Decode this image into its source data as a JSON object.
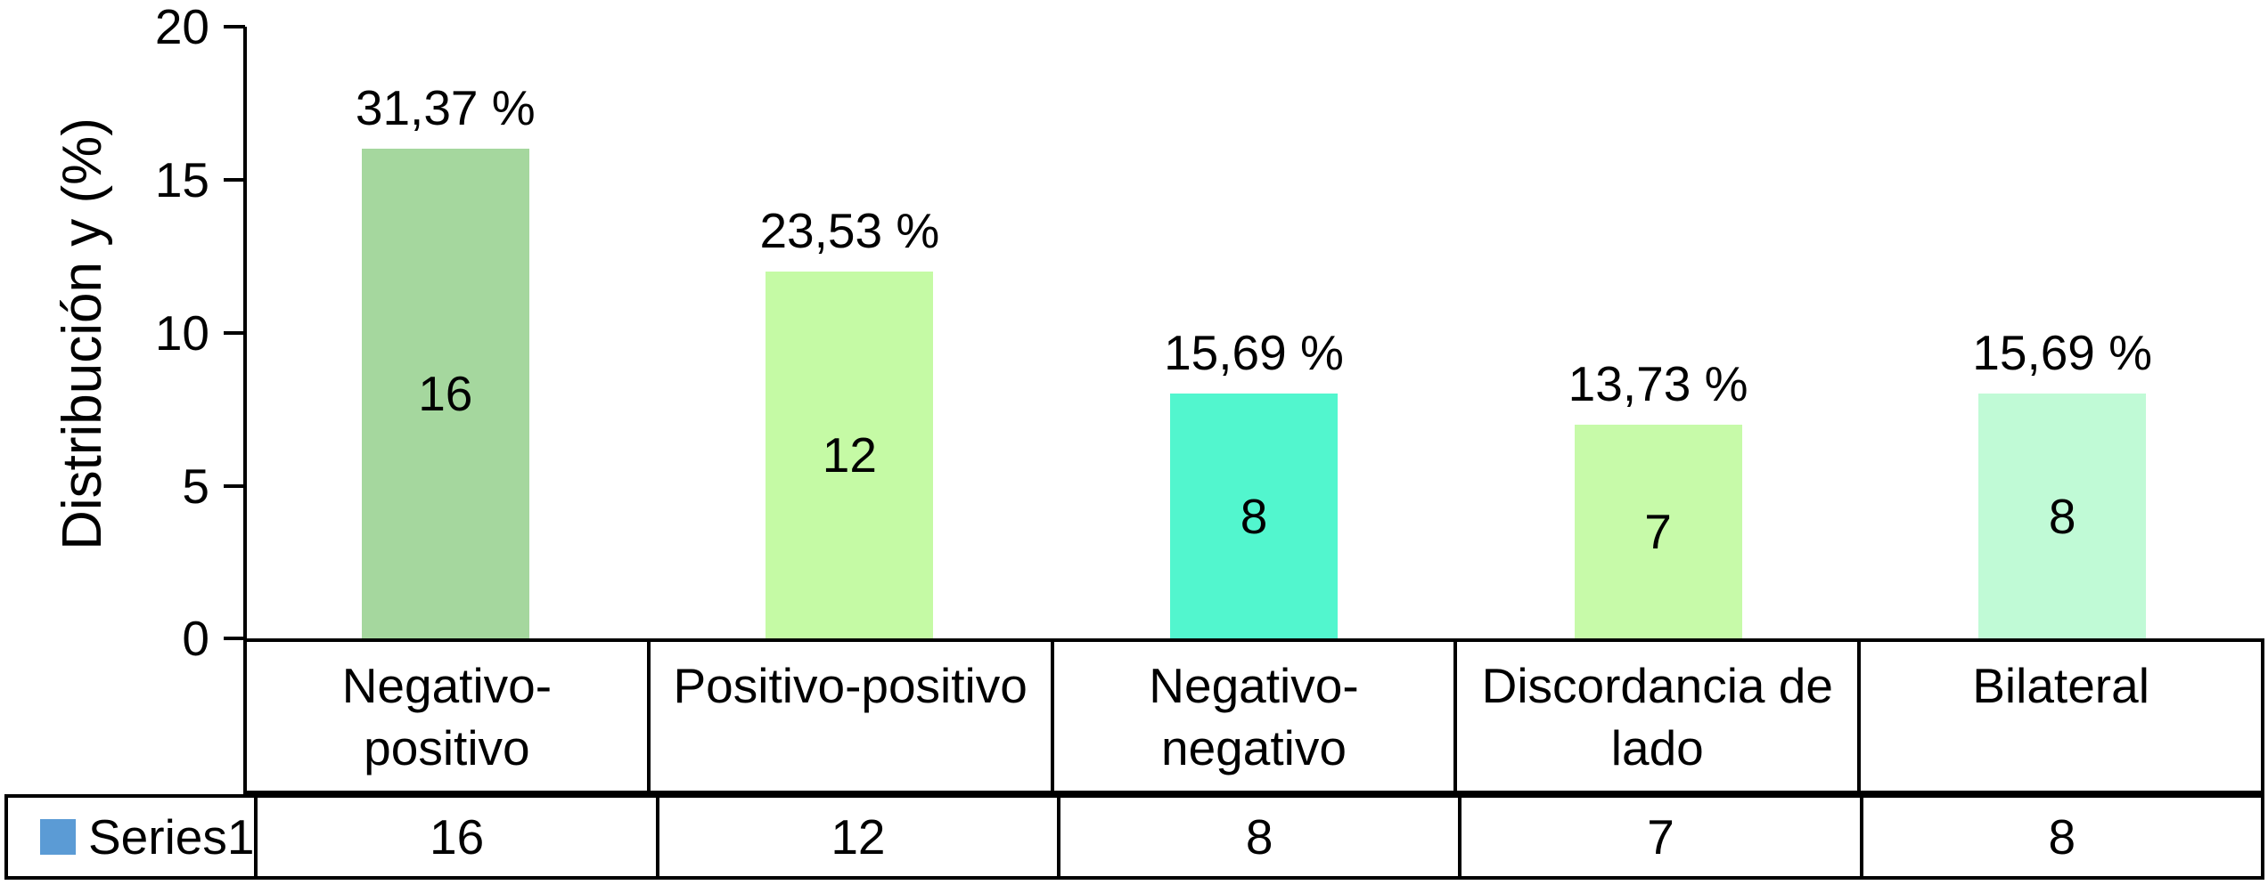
{
  "chart_data": {
    "type": "bar",
    "title": "",
    "ylabel": "Distribución y (%)",
    "xlabel": "",
    "ylim": [
      0,
      20
    ],
    "yticks": [
      20,
      15,
      10,
      5,
      0
    ],
    "grid": false,
    "legend_position": "bottom-table",
    "categories": [
      "Negativo-positivo",
      "Positivo-positivo",
      "Negativo-negativo",
      "Discordancia de lado",
      "Bilateral"
    ],
    "series": [
      {
        "name": "Series1",
        "values": [
          16,
          12,
          8,
          7,
          8
        ]
      }
    ],
    "bar_value_labels": [
      "16",
      "12",
      "8",
      "7",
      "8"
    ],
    "percent_labels": [
      "31,37 %",
      "23,53 %",
      "15,69 %",
      "13,73 %",
      "15,69 %"
    ],
    "bar_colors": [
      "#a5d79e",
      "#c5faa5",
      "#52f6ce",
      "#c7faa9",
      "#c0fad6"
    ],
    "legend": {
      "name": "Series1",
      "swatch_color": "#5b9bd5"
    },
    "table_row": {
      "label": "Series1",
      "values": [
        16,
        12,
        8,
        7,
        8
      ]
    },
    "axis_color": "#000000"
  }
}
